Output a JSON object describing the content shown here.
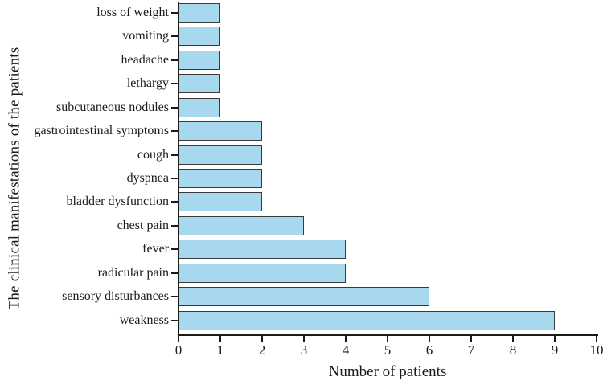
{
  "chart_data": {
    "type": "bar",
    "orientation": "horizontal",
    "title": "",
    "xlabel": "Number of patients",
    "ylabel": "The clinical manifestations of the patients",
    "categories": [
      "loss of weight",
      "vomiting",
      "headache",
      "lethargy",
      "subcutaneous nodules",
      "gastrointestinal symptoms",
      "cough",
      "dyspnea",
      "bladder dysfunction",
      "chest pain",
      "fever",
      "radicular pain",
      "sensory disturbances",
      "weakness"
    ],
    "values": [
      1,
      1,
      1,
      1,
      1,
      2,
      2,
      2,
      2,
      3,
      4,
      4,
      6,
      9
    ],
    "xlim": [
      0,
      10
    ],
    "x_ticks": [
      0,
      1,
      2,
      3,
      4,
      5,
      6,
      7,
      8,
      9,
      10
    ],
    "grid": "off",
    "legend": "none",
    "colors": {
      "bar_fill": "#A8D8EE",
      "bar_border": "#3A3A3A",
      "axis": "#1A1A1A",
      "text": "#1A1A1A",
      "background": "#FFFFFF"
    }
  }
}
